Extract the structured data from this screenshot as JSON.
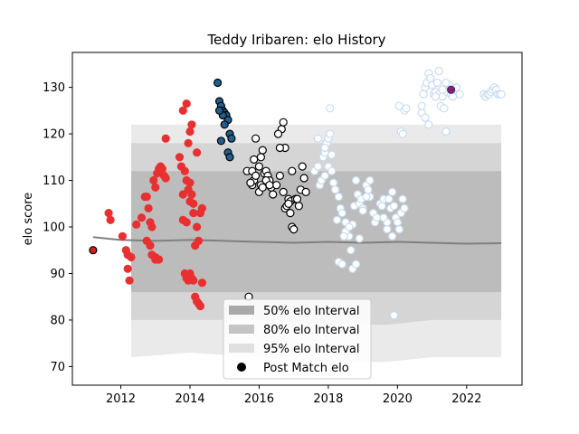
{
  "chart_data": {
    "type": "scatter",
    "title": "Teddy Iribaren: elo History",
    "xlabel": "",
    "ylabel": "elo score",
    "xlim": [
      2010.6,
      2023.6
    ],
    "ylim": [
      66,
      137.5
    ],
    "x_ticks": [
      2012,
      2014,
      2016,
      2018,
      2020,
      2022
    ],
    "y_ticks": [
      70,
      80,
      90,
      100,
      110,
      120,
      130
    ],
    "grid": false,
    "legend_position": "lower center",
    "legend": [
      {
        "label": "50% elo Interval",
        "kind": "band",
        "color": "#a9a9a9"
      },
      {
        "label": "80% elo Interval",
        "kind": "band",
        "color": "#c4c4c4"
      },
      {
        "label": "95% elo Interval",
        "kind": "band",
        "color": "#e0e0e0"
      },
      {
        "label": "Post Match elo",
        "kind": "marker",
        "color": "#000000"
      }
    ],
    "bands": {
      "colors": {
        "p95": "#e3e3e3",
        "p80": "#cdcdcd",
        "p50": "#b3b3b3"
      },
      "x": [
        2012.3,
        2014.0,
        2016.0,
        2018.0,
        2019.7,
        2021.0,
        2023.0
      ],
      "p95": {
        "lower": [
          72,
          73,
          72,
          71,
          71,
          72,
          72
        ],
        "upper": [
          122,
          122,
          122,
          122,
          122,
          122,
          122
        ]
      },
      "p80": {
        "lower": [
          80,
          80,
          80,
          79,
          79,
          80,
          80
        ],
        "upper": [
          118,
          118,
          118,
          118,
          118,
          118,
          118
        ]
      },
      "p50": {
        "lower": [
          86,
          86,
          86,
          86,
          86,
          86,
          86
        ],
        "upper": [
          112,
          112,
          112,
          112,
          112,
          112,
          112
        ]
      }
    },
    "mean_line": {
      "color": "#808080",
      "x": [
        2011.2,
        2012.0,
        2013.0,
        2014.0,
        2015.0,
        2016.0,
        2017.0,
        2018.0,
        2019.0,
        2020.0,
        2021.0,
        2022.0,
        2023.0
      ],
      "y": [
        97.8,
        97.2,
        97.0,
        97.2,
        97.0,
        96.8,
        96.6,
        96.8,
        96.6,
        96.8,
        96.6,
        96.4,
        96.5
      ]
    },
    "series": [
      {
        "name": "",
        "color": "#e83030",
        "edge": "#e83030",
        "x": [
          2011.65,
          2011.7,
          2012.05,
          2012.15,
          2012.2,
          2012.25,
          2012.3,
          2012.45,
          2012.6,
          2012.7,
          2012.75,
          2012.8,
          2012.85,
          2012.9,
          2012.95,
          2013.0,
          2013.05,
          2013.1,
          2013.15,
          2013.2,
          2013.25,
          2013.3,
          2013.0,
          2013.1,
          2012.9,
          2013.0,
          2012.85,
          2012.75,
          2013.3,
          2013.7,
          2013.75,
          2013.8,
          2013.85,
          2013.9,
          2013.95,
          2014.0,
          2014.05,
          2014.1,
          2014.15,
          2014.2,
          2014.25,
          2014.3,
          2014.35,
          2013.85,
          2013.9,
          2013.95,
          2014.0,
          2014.05,
          2014.1,
          2014.15,
          2014.2,
          2014.25,
          2014.3,
          2014.35,
          2013.8,
          2013.9,
          2014.0,
          2014.1,
          2014.2,
          2014.0,
          2014.05,
          2013.8,
          2013.9,
          2013.95,
          2012.2
        ],
        "y": [
          103,
          101.5,
          98,
          95,
          91,
          88.5,
          93.5,
          100.5,
          102,
          106.5,
          106.5,
          104,
          101,
          100,
          110,
          108.5,
          111.5,
          112.5,
          113,
          112.5,
          111,
          110.5,
          93,
          93,
          94,
          93.5,
          96,
          97,
          119,
          115,
          113,
          107,
          112,
          110,
          108,
          109.5,
          107,
          105,
          96,
          100,
          97,
          103,
          104,
          90,
          89,
          88.5,
          90,
          89,
          88.5,
          85,
          84,
          83.5,
          83,
          88,
          101.5,
          101,
          105.5,
          103,
          116,
          120.5,
          122,
          125,
          126.5,
          118,
          94
        ]
      },
      {
        "name": "",
        "color": "#1f5f8f",
        "edge": "#000000",
        "x": [
          2014.8,
          2014.85,
          2014.9,
          2014.95,
          2015.0,
          2015.05,
          2015.1,
          2015.15,
          2015.2,
          2014.9,
          2014.95,
          2015.0,
          2015.1,
          2015.15,
          2014.85
        ],
        "y": [
          131,
          127,
          126,
          125,
          124.5,
          124,
          123,
          120,
          119,
          118.5,
          124,
          122,
          116,
          115,
          125
        ]
      },
      {
        "name": "",
        "color": "#ffffff",
        "edge": "#000000",
        "x": [
          2015.7,
          2015.65,
          2015.8,
          2015.85,
          2015.9,
          2016.0,
          2016.05,
          2016.1,
          2016.15,
          2016.2,
          2016.25,
          2016.3,
          2016.35,
          2016.4,
          2016.5,
          2016.6,
          2016.7,
          2016.75,
          2016.8,
          2016.85,
          2016.9,
          2016.95,
          2017.0,
          2017.05,
          2017.1,
          2017.15,
          2017.2,
          2017.25,
          2017.3,
          2017.35,
          2016.65,
          2016.7,
          2016.75,
          2016.6,
          2016.55,
          2016.85,
          2016.9,
          2016.95,
          2015.75,
          2015.8,
          2015.85,
          2015.9,
          2016.0,
          2016.05,
          2016.1,
          2016.2,
          2016.3
        ],
        "y": [
          85,
          112,
          109,
          110,
          119,
          113,
          115,
          116.5,
          111.5,
          112,
          111,
          110,
          108.5,
          107,
          109,
          111,
          107.5,
          104,
          104.5,
          106,
          105.5,
          100,
          99.5,
          106,
          106,
          104.5,
          108,
          113,
          110.5,
          107.5,
          121,
          122.5,
          117,
          117,
          120,
          105,
          103,
          112,
          109.5,
          112,
          114.5,
          111,
          107.5,
          109,
          108.5,
          110,
          109
        ]
      },
      {
        "name": "",
        "color": "#ffffff",
        "edge": "#c8dcf0",
        "x": [
          2017.6,
          2017.7,
          2017.8,
          2017.85,
          2017.9,
          2017.95,
          2018.0,
          2018.05,
          2018.1,
          2018.2,
          2018.3,
          2018.35,
          2018.4,
          2018.5,
          2018.6,
          2018.7,
          2018.75,
          2018.8,
          2018.85,
          2018.9,
          2018.95,
          2019.0,
          2019.1,
          2019.15,
          2019.2,
          2019.3,
          2019.35,
          2019.4,
          2019.5,
          2019.55,
          2019.6,
          2019.7,
          2019.75,
          2019.8,
          2019.85,
          2019.9,
          2019.95,
          2020.0,
          2020.05,
          2020.1,
          2020.15,
          2020.2,
          2018.3,
          2018.4,
          2018.7,
          2018.8,
          2019.9,
          2017.75,
          2017.8,
          2017.9,
          2018.0,
          2018.1,
          2018.15,
          2018.2,
          2018.5,
          2018.6,
          2018.65,
          2018.9,
          2019.0,
          2019.1,
          2019.2,
          2019.6,
          2019.7,
          2019.85,
          2017.7,
          2017.9,
          2018.05,
          2018.25,
          2018.45
        ],
        "y": [
          112,
          113,
          110,
          115,
          116,
          118,
          119,
          120,
          115.5,
          108,
          106.5,
          104,
          103,
          101,
          98,
          100.5,
          104.5,
          110,
          107,
          105,
          106,
          104,
          109,
          108,
          106.5,
          103,
          101,
          102,
          105,
          104.5,
          106,
          101,
          106,
          104,
          107.5,
          104.5,
          102,
          101,
          99.5,
          103,
          106,
          104,
          92.5,
          92,
          91,
          92,
          81,
          109,
          110,
          111,
          113,
          112,
          109.5,
          108,
          99,
          100,
          95,
          97.5,
          103.5,
          106.5,
          110,
          102,
          99.5,
          98,
          119,
          117,
          125.5,
          101.5,
          98
        ]
      },
      {
        "name": "",
        "color": "#ffffff",
        "edge": "#c8dcf0",
        "x": [
          2020.05,
          2020.1,
          2020.15,
          2020.2,
          2020.25,
          2020.7,
          2020.75,
          2020.8,
          2020.85,
          2020.9,
          2020.95,
          2021.0,
          2021.05,
          2021.1,
          2021.15,
          2021.2,
          2021.25,
          2021.3,
          2021.35,
          2021.4,
          2021.45,
          2021.5,
          2021.55,
          2021.6,
          2021.7,
          2021.8,
          2022.5,
          2022.55,
          2022.6,
          2022.65,
          2022.7,
          2022.75,
          2022.8,
          2022.85,
          2022.9,
          2022.95,
          2023.0,
          2020.7,
          2020.8,
          2020.9,
          2021.1,
          2021.2,
          2021.3,
          2021.4
        ],
        "y": [
          126,
          120.5,
          120,
          125,
          125.5,
          126,
          128.5,
          130,
          131,
          133,
          132,
          130.5,
          128.5,
          129,
          131,
          128.5,
          126,
          128,
          125.5,
          120.5,
          129,
          130.5,
          128.5,
          128,
          130,
          128.5,
          128.5,
          128,
          128.5,
          128.5,
          129,
          129.5,
          130,
          129.5,
          128.5,
          128.5,
          128.5,
          124.5,
          123.5,
          122,
          128,
          133.5,
          129.5,
          131
        ]
      },
      {
        "name": "",
        "color": "#9b1b5a",
        "edge": "#2a2aa8",
        "x": [
          2021.55
        ],
        "y": [
          129.5
        ]
      },
      {
        "name": "",
        "color": "#d02020",
        "edge": "#000000",
        "x": [
          2011.2
        ],
        "y": [
          95
        ]
      }
    ]
  }
}
